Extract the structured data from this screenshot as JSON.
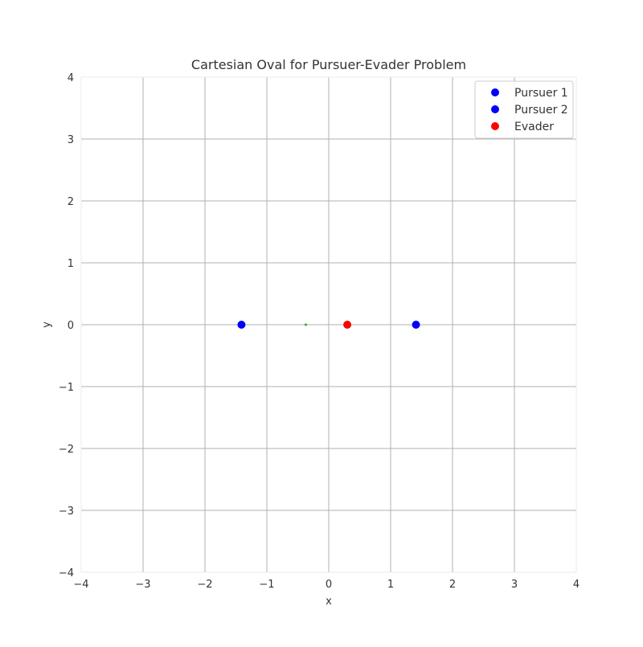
{
  "chart_data": {
    "type": "scatter",
    "title": "Cartesian Oval for Pursuer-Evader Problem",
    "xlabel": "x",
    "ylabel": "y",
    "xlim": [
      -4,
      4
    ],
    "ylim": [
      -4,
      4
    ],
    "xticks": [
      -4,
      -3,
      -2,
      -1,
      0,
      1,
      2,
      3,
      4
    ],
    "yticks": [
      -4,
      -3,
      -2,
      -1,
      0,
      1,
      2,
      3,
      4
    ],
    "xtick_labels": [
      "−4",
      "−3",
      "−2",
      "−1",
      "0",
      "1",
      "2",
      "3",
      "4"
    ],
    "ytick_labels": [
      "−4",
      "−3",
      "−2",
      "−1",
      "0",
      "1",
      "2",
      "3",
      "4"
    ],
    "grid": true,
    "legend_position": "top-right",
    "series": [
      {
        "name": "Pursuer 1",
        "color": "#0000ff",
        "points": [
          {
            "x": -1.41,
            "y": 0
          }
        ]
      },
      {
        "name": "Pursuer 2",
        "color": "#0000ff",
        "points": [
          {
            "x": 1.41,
            "y": 0
          }
        ]
      },
      {
        "name": "Evader",
        "color": "#ff0000",
        "points": [
          {
            "x": 0.3,
            "y": 0
          }
        ]
      }
    ],
    "annotations": [
      {
        "x": -0.37,
        "y": 0,
        "color": "#2ca02c"
      }
    ]
  }
}
